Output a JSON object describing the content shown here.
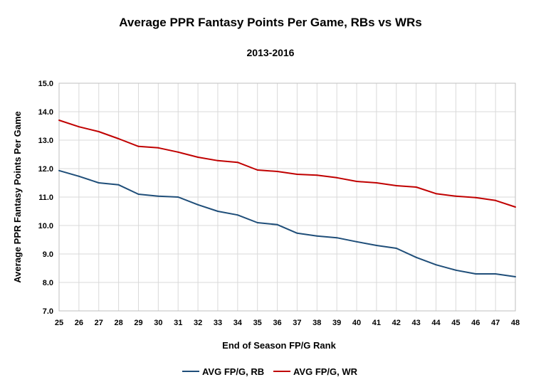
{
  "chart_data": {
    "type": "line",
    "title": "Average PPR Fantasy Points Per Game, RBs vs WRs",
    "subtitle": "2013-2016",
    "xlabel": "End of Season FP/G Rank",
    "ylabel": "Average PPR Fantasy Points Per Game",
    "x": [
      25,
      26,
      27,
      28,
      29,
      30,
      31,
      32,
      33,
      34,
      35,
      36,
      37,
      38,
      39,
      40,
      41,
      42,
      43,
      44,
      45,
      46,
      47,
      48
    ],
    "ylim": [
      7.0,
      15.0
    ],
    "yticks": [
      "7.0",
      "8.0",
      "9.0",
      "10.0",
      "11.0",
      "12.0",
      "13.0",
      "14.0",
      "15.0"
    ],
    "grid": true,
    "legend_position": "bottom",
    "series": [
      {
        "name": "AVG FP/G, RB",
        "color": "#1f4e79",
        "values": [
          11.93,
          11.73,
          11.5,
          11.43,
          11.1,
          11.03,
          11.0,
          10.73,
          10.5,
          10.37,
          10.1,
          10.03,
          9.73,
          9.63,
          9.57,
          9.43,
          9.3,
          9.2,
          8.88,
          8.62,
          8.43,
          8.3,
          8.3,
          8.2
        ]
      },
      {
        "name": "AVG FP/G, WR",
        "color": "#c00000",
        "values": [
          13.7,
          13.47,
          13.3,
          13.05,
          12.78,
          12.73,
          12.58,
          12.4,
          12.28,
          12.22,
          11.95,
          11.9,
          11.8,
          11.77,
          11.68,
          11.55,
          11.5,
          11.4,
          11.35,
          11.12,
          11.03,
          10.98,
          10.88,
          10.65
        ]
      }
    ]
  }
}
